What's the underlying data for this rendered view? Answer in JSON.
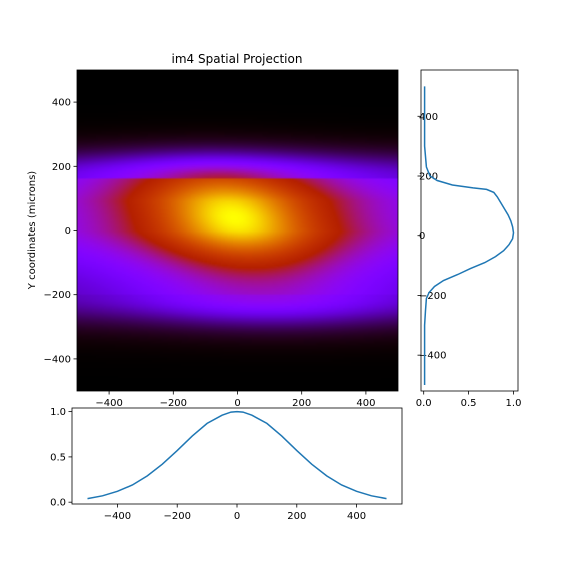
{
  "chart_data": [
    {
      "type": "heatmap",
      "panel": "main",
      "title": "im4 Spatial Projection",
      "xlabel": "",
      "ylabel": "Y coordinates (microns)",
      "xlim": [
        -500,
        500
      ],
      "ylim": [
        -500,
        500
      ],
      "xticks": [
        -400,
        -200,
        0,
        200,
        400
      ],
      "yticks": [
        -400,
        -200,
        0,
        200,
        400
      ],
      "colormap": "gnuplot",
      "grid": false,
      "intensity_model": {
        "description": "bright core slightly left of centre, upper edge sharp near y=160, soft lower edge",
        "peak_xy": [
          -10,
          40
        ],
        "upper_edge_y": 160,
        "lower_tail_y": -200,
        "x_fwhm": 470
      }
    },
    {
      "type": "line",
      "panel": "right-projection",
      "title": "",
      "xlabel": "",
      "ylabel": "",
      "xlim": [
        -0.03,
        1.05
      ],
      "ylim": [
        -520,
        555
      ],
      "xticks": [
        0.0,
        0.5,
        1.0
      ],
      "xtick_labels": [
        "0.0",
        "0.5",
        "1.0"
      ],
      "yticks": [
        -400,
        -200,
        0,
        200,
        400
      ],
      "color": "#1f77b4",
      "series": [
        {
          "y": [
            -500,
            -400,
            -300,
            -250,
            -210,
            -190,
            -170,
            -150,
            -130,
            -110,
            -90,
            -70,
            -50,
            -30,
            -10,
            10,
            30,
            50,
            70,
            90,
            110,
            130,
            145,
            155,
            160,
            170,
            185,
            200,
            230,
            300,
            400,
            500
          ],
          "x": [
            0.01,
            0.01,
            0.01,
            0.02,
            0.03,
            0.06,
            0.12,
            0.22,
            0.38,
            0.52,
            0.68,
            0.8,
            0.89,
            0.95,
            0.99,
            1.0,
            0.99,
            0.97,
            0.94,
            0.9,
            0.86,
            0.82,
            0.78,
            0.7,
            0.55,
            0.32,
            0.15,
            0.07,
            0.03,
            0.01,
            0.01,
            0.01
          ]
        }
      ]
    },
    {
      "type": "line",
      "panel": "bottom-projection",
      "title": "",
      "xlabel": "",
      "ylabel": "",
      "xlim": [
        -552,
        552
      ],
      "ylim": [
        -0.02,
        1.04
      ],
      "xticks": [
        -400,
        -200,
        0,
        200,
        400
      ],
      "yticks": [
        0.0,
        0.5,
        1.0
      ],
      "ytick_labels": [
        "0.0",
        "0.5",
        "1.0"
      ],
      "color": "#1f77b4",
      "series": [
        {
          "x": [
            -500,
            -450,
            -400,
            -350,
            -300,
            -250,
            -200,
            -150,
            -100,
            -50,
            -20,
            0,
            20,
            50,
            100,
            150,
            200,
            250,
            300,
            350,
            400,
            450,
            500
          ],
          "y": [
            0.04,
            0.07,
            0.12,
            0.19,
            0.29,
            0.42,
            0.57,
            0.73,
            0.87,
            0.96,
            0.995,
            1.0,
            0.995,
            0.96,
            0.87,
            0.73,
            0.57,
            0.42,
            0.29,
            0.19,
            0.12,
            0.07,
            0.04
          ]
        }
      ]
    }
  ]
}
